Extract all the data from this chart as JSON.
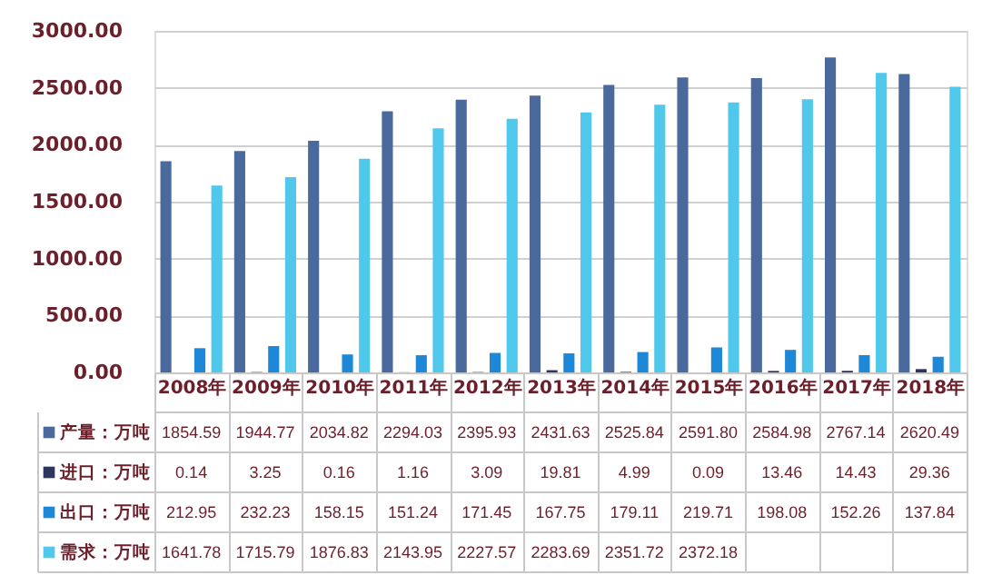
{
  "chart_data": {
    "type": "bar",
    "categories": [
      "2008年",
      "2009年",
      "2010年",
      "2011年",
      "2012年",
      "2013年",
      "2014年",
      "2015年",
      "2016年",
      "2017年",
      "2018年"
    ],
    "series": [
      {
        "name": "产量：万吨",
        "color": "#4a6a9e",
        "values": [
          1854.59,
          1944.77,
          2034.82,
          2294.03,
          2395.93,
          2431.63,
          2525.84,
          2591.8,
          2584.98,
          2767.14,
          2620.49
        ],
        "value_labels": [
          "1854.59",
          "1944.77",
          "2034.82",
          "2294.03",
          "2395.93",
          "2431.63",
          "2525.84",
          "2591.80",
          "2584.98",
          "2767.14",
          "2620.49"
        ]
      },
      {
        "name": "进口：万吨",
        "color": "#2e3560",
        "values": [
          0.14,
          3.25,
          0.16,
          1.16,
          3.09,
          19.81,
          4.99,
          0.09,
          13.46,
          14.43,
          29.36
        ],
        "value_labels": [
          "0.14",
          "3.25",
          "0.16",
          "1.16",
          "3.09",
          "19.81",
          "4.99",
          "0.09",
          "13.46",
          "14.43",
          "29.36"
        ]
      },
      {
        "name": "出口：万吨",
        "color": "#1e88d8",
        "values": [
          212.95,
          232.23,
          158.15,
          151.24,
          171.45,
          167.75,
          179.11,
          219.71,
          198.08,
          152.26,
          137.84
        ],
        "value_labels": [
          "212.95",
          "232.23",
          "158.15",
          "151.24",
          "171.45",
          "167.75",
          "179.11",
          "219.71",
          "198.08",
          "152.26",
          "137.84"
        ]
      },
      {
        "name": "需求：万吨",
        "color": "#4fc8ec",
        "values": [
          1641.78,
          1715.79,
          1876.83,
          2143.95,
          2227.57,
          2283.69,
          2351.72,
          2372.18,
          2400,
          2630,
          2510
        ],
        "value_labels": [
          "1641.78",
          "1715.79",
          "1876.83",
          "2143.95",
          "2227.57",
          "2283.69",
          "2351.72",
          "2372.18",
          null,
          null,
          null
        ]
      }
    ],
    "ylim": [
      0,
      3000
    ],
    "yticks": [
      {
        "value": 0,
        "label": "0.00"
      },
      {
        "value": 500,
        "label": "500.00"
      },
      {
        "value": 1000,
        "label": "1000.00"
      },
      {
        "value": 1500,
        "label": "1500.00"
      },
      {
        "value": 2000,
        "label": "2000.00"
      },
      {
        "value": 2500,
        "label": "2500.00"
      },
      {
        "value": 3000,
        "label": "3000.00"
      }
    ],
    "grid": "y",
    "legend": "bottom"
  }
}
